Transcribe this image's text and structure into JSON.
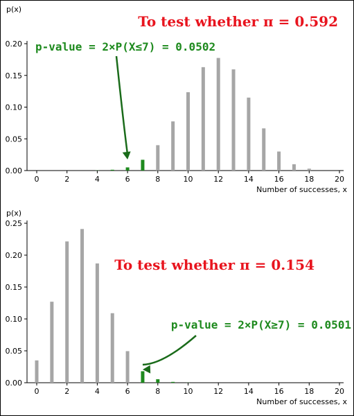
{
  "chart_data": [
    {
      "type": "bar",
      "ylabel": "p(x)",
      "xlabel": "Number of successes, x",
      "title": "To test whether π = 0.592",
      "annotation": "p-value = 2×P(X≤7) = 0.0502",
      "xlim": [
        0,
        20
      ],
      "ylim": [
        0,
        0.2
      ],
      "x_ticks": [
        0,
        2,
        4,
        6,
        8,
        10,
        12,
        14,
        16,
        18,
        20
      ],
      "y_ticks": [
        0.0,
        0.05,
        0.1,
        0.15,
        0.2
      ],
      "y_tick_labels": [
        "0.00",
        "0.05",
        "0.10",
        "0.15",
        "0.20"
      ],
      "x": [
        0,
        1,
        2,
        3,
        4,
        5,
        6,
        7,
        8,
        9,
        10,
        11,
        12,
        13,
        14,
        15,
        16,
        17,
        18,
        19,
        20
      ],
      "values": [
        0.0,
        0.0,
        0.0,
        0.0,
        0.0003,
        0.0013,
        0.005,
        0.017,
        0.04,
        0.0775,
        0.1235,
        0.163,
        0.1775,
        0.1595,
        0.115,
        0.0665,
        0.03,
        0.01,
        0.003,
        0.0,
        0.0
      ],
      "highlight_x": [
        0,
        1,
        2,
        3,
        4,
        5,
        6,
        7
      ],
      "arrow_to_x": 6,
      "colors": {
        "bars": "#a6a6a6",
        "highlight": "#1e8a1e",
        "title": "#e8141e",
        "annotation": "#1e8a1e",
        "arrow": "#1a6b1a"
      }
    },
    {
      "type": "bar",
      "ylabel": "p(x)",
      "xlabel": "Number of successes, x",
      "title": "To test whether π = 0.154",
      "annotation": "p-value = 2×P(X≥7) = 0.0501",
      "xlim": [
        0,
        20
      ],
      "ylim": [
        0,
        0.25
      ],
      "x_ticks": [
        0,
        2,
        4,
        6,
        8,
        10,
        12,
        14,
        16,
        18,
        20
      ],
      "y_ticks": [
        0.0,
        0.05,
        0.1,
        0.15,
        0.2,
        0.25
      ],
      "y_tick_labels": [
        "0.00",
        "0.05",
        "0.10",
        "0.15",
        "0.20",
        "0.25"
      ],
      "x": [
        0,
        1,
        2,
        3,
        4,
        5,
        6,
        7,
        8,
        9,
        10,
        11,
        12,
        13,
        14,
        15,
        16,
        17,
        18,
        19,
        20
      ],
      "values": [
        0.035,
        0.127,
        0.2215,
        0.241,
        0.187,
        0.109,
        0.0495,
        0.018,
        0.0055,
        0.0013,
        0.0002,
        0.0,
        0.0,
        0.0,
        0.0,
        0.0,
        0.0,
        0.0,
        0.0,
        0.0,
        0.0
      ],
      "highlight_x": [
        7,
        8,
        9,
        10,
        11,
        12,
        13,
        14,
        15,
        16,
        17,
        18,
        19,
        20
      ],
      "arrow_to_x": 7,
      "colors": {
        "bars": "#a6a6a6",
        "highlight": "#1e8a1e",
        "title": "#e8141e",
        "annotation": "#1e8a1e",
        "arrow": "#1a6b1a"
      }
    }
  ]
}
